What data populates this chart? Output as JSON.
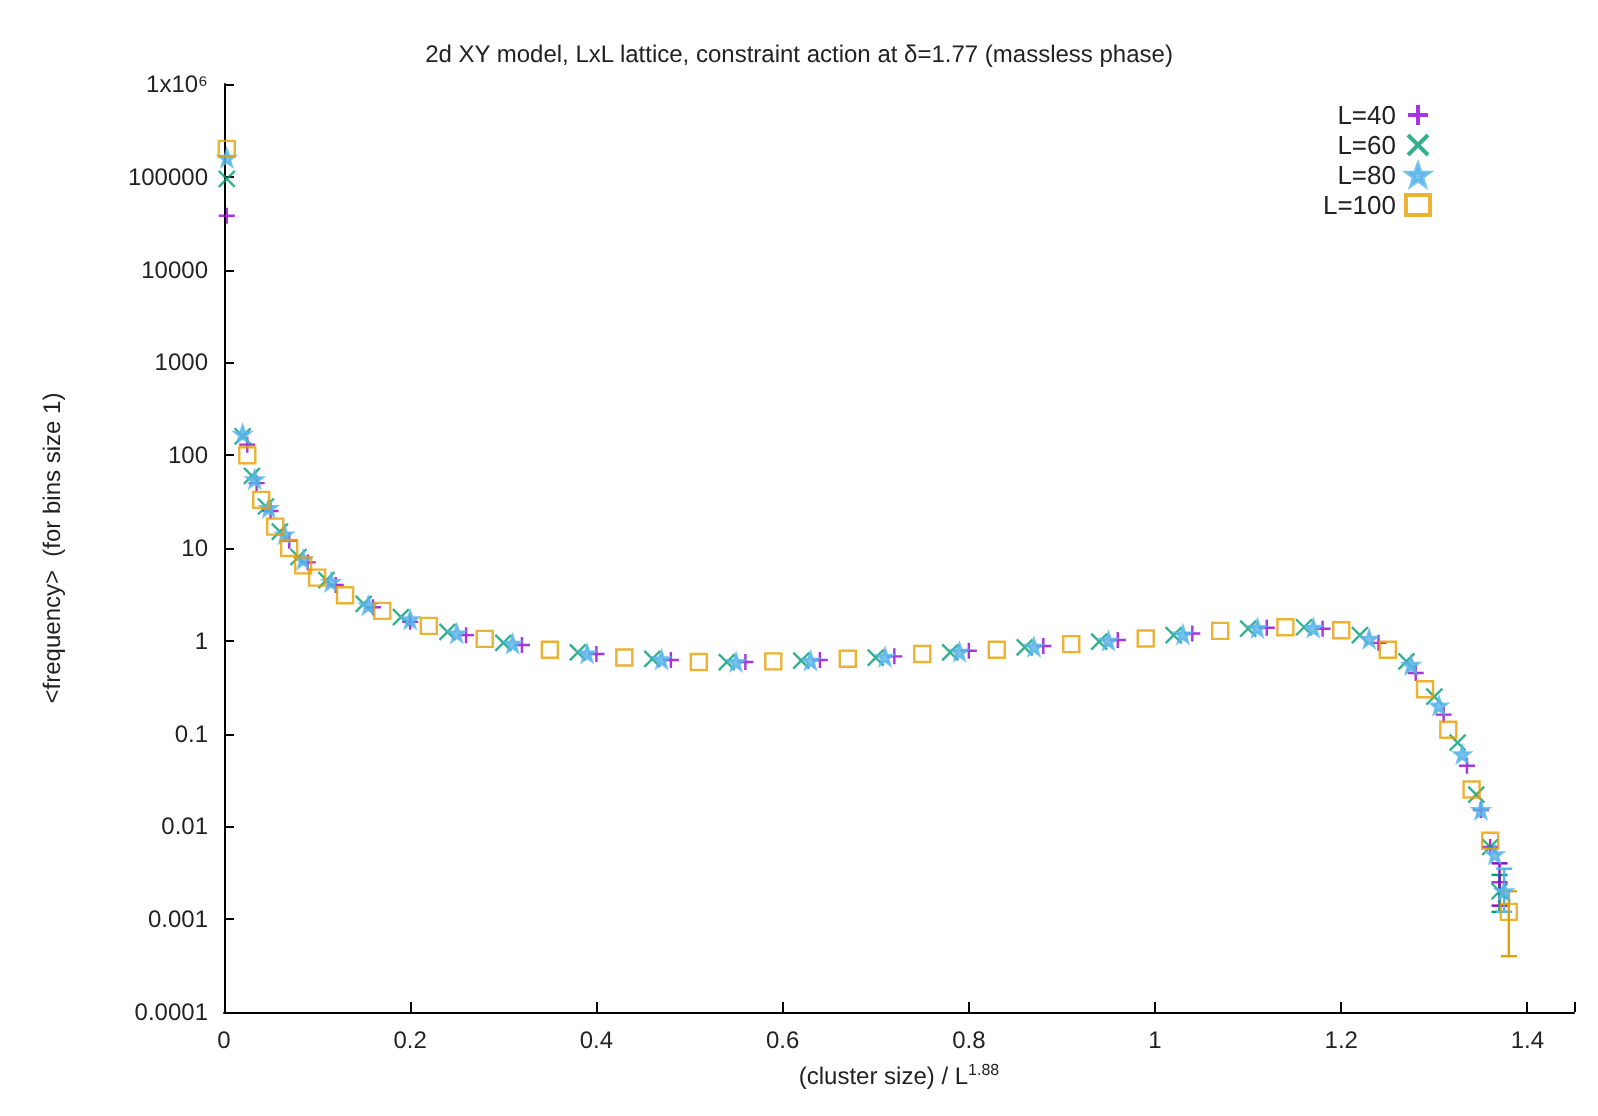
{
  "chart_data": {
    "type": "scatter",
    "title": "2d XY model, LxL lattice, constraint action at δ=1.77 (massless phase)",
    "xlabel": "(cluster size) / L$^{1.88}$",
    "ylabel": "<frequency>  (for bins size 1)",
    "log": "y",
    "grid": false,
    "legend": "top right",
    "xlim": [
      0,
      1.45
    ],
    "xticks": [
      0,
      0.2,
      0.4,
      0.6,
      0.8,
      1,
      1.2,
      1.4
    ],
    "ylim": [
      0.0001,
      1000000
    ],
    "yticks": [
      0.0001,
      0.001,
      0.01,
      0.1,
      1,
      10,
      100,
      1000,
      10000,
      100000,
      {
        "value": 1000000,
        "label": "1x10⁶"
      }
    ],
    "series": [
      {
        "name": "L=40",
        "color": "#9400d3",
        "marker": "plus",
        "x": [
          0.003,
          0.025,
          0.035,
          0.05,
          0.07,
          0.09,
          0.12,
          0.16,
          0.2,
          0.26,
          0.32,
          0.4,
          0.48,
          0.56,
          0.64,
          0.72,
          0.8,
          0.88,
          0.96,
          1.04,
          1.12,
          1.18,
          1.24,
          1.28,
          1.31,
          1.335,
          1.35,
          1.36,
          1.37
        ],
        "values": [
          38000,
          130,
          50,
          25,
          12,
          7,
          4,
          2.3,
          1.6,
          1.15,
          0.9,
          0.72,
          0.62,
          0.59,
          0.62,
          0.68,
          0.78,
          0.88,
          1.02,
          1.2,
          1.38,
          1.35,
          0.95,
          0.45,
          0.16,
          0.045,
          0.015,
          0.006,
          0.0025
        ],
        "errors": [
          null,
          null,
          null,
          null,
          null,
          null,
          null,
          null,
          null,
          null,
          null,
          null,
          null,
          null,
          null,
          null,
          null,
          null,
          null,
          null,
          null,
          null,
          null,
          null,
          null,
          null,
          null,
          null,
          [
            0.0014,
            0.004
          ]
        ]
      },
      {
        "name": "L=60",
        "color": "#009e73",
        "marker": "cross",
        "x": [
          0.003,
          0.02,
          0.03,
          0.045,
          0.06,
          0.08,
          0.11,
          0.15,
          0.19,
          0.24,
          0.3,
          0.38,
          0.46,
          0.54,
          0.62,
          0.7,
          0.78,
          0.86,
          0.94,
          1.02,
          1.1,
          1.16,
          1.22,
          1.27,
          1.3,
          1.325,
          1.345,
          1.36,
          1.37
        ],
        "values": [
          95000,
          160,
          60,
          28,
          15,
          8,
          4.5,
          2.5,
          1.8,
          1.25,
          0.95,
          0.75,
          0.64,
          0.59,
          0.61,
          0.66,
          0.75,
          0.85,
          0.98,
          1.15,
          1.35,
          1.4,
          1.15,
          0.6,
          0.25,
          0.08,
          0.022,
          0.006,
          0.002
        ],
        "errors": [
          null,
          null,
          null,
          null,
          null,
          null,
          null,
          null,
          null,
          null,
          null,
          null,
          null,
          null,
          null,
          null,
          null,
          null,
          null,
          null,
          null,
          null,
          null,
          null,
          null,
          null,
          null,
          null,
          [
            0.0012,
            0.003
          ]
        ]
      },
      {
        "name": "L=80",
        "color": "#56b4e9",
        "marker": "star",
        "x": [
          0.003,
          0.02,
          0.033,
          0.048,
          0.065,
          0.085,
          0.115,
          0.155,
          0.2,
          0.25,
          0.31,
          0.39,
          0.47,
          0.55,
          0.63,
          0.71,
          0.79,
          0.87,
          0.95,
          1.03,
          1.11,
          1.17,
          1.23,
          1.275,
          1.305,
          1.33,
          1.35,
          1.365,
          1.375
        ],
        "values": [
          160000,
          170,
          55,
          27,
          14,
          7.5,
          4.3,
          2.4,
          1.7,
          1.2,
          0.93,
          0.73,
          0.63,
          0.59,
          0.61,
          0.67,
          0.76,
          0.86,
          1.0,
          1.17,
          1.37,
          1.38,
          1.05,
          0.55,
          0.2,
          0.06,
          0.015,
          0.005,
          0.002
        ],
        "errors": [
          null,
          null,
          null,
          null,
          null,
          null,
          null,
          null,
          null,
          null,
          null,
          null,
          null,
          null,
          null,
          null,
          null,
          null,
          null,
          null,
          null,
          null,
          null,
          null,
          null,
          null,
          null,
          null,
          [
            0.0012,
            0.0035
          ]
        ]
      },
      {
        "name": "L=100",
        "color": "#e69f00",
        "marker": "square",
        "x": [
          0.003,
          0.025,
          0.04,
          0.055,
          0.07,
          0.085,
          0.1,
          0.13,
          0.17,
          0.22,
          0.28,
          0.35,
          0.43,
          0.51,
          0.59,
          0.67,
          0.75,
          0.83,
          0.91,
          0.99,
          1.07,
          1.14,
          1.2,
          1.25,
          1.29,
          1.315,
          1.34,
          1.36,
          1.38
        ],
        "values": [
          200000,
          100,
          33,
          17,
          10,
          6.5,
          4.8,
          3.1,
          2.1,
          1.45,
          1.05,
          0.8,
          0.66,
          0.59,
          0.6,
          0.64,
          0.72,
          0.8,
          0.92,
          1.06,
          1.28,
          1.4,
          1.3,
          0.8,
          0.3,
          0.11,
          0.025,
          0.007,
          0.0012
        ],
        "errors": [
          null,
          null,
          null,
          null,
          null,
          null,
          null,
          null,
          null,
          null,
          null,
          null,
          null,
          null,
          null,
          null,
          null,
          null,
          null,
          null,
          null,
          null,
          null,
          null,
          null,
          null,
          null,
          null,
          [
            0.0004,
            0.002
          ]
        ]
      }
    ]
  }
}
